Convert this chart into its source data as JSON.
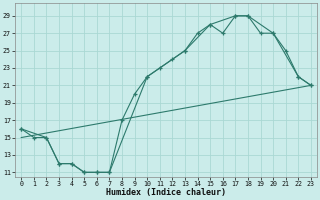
{
  "xlabel": "Humidex (Indice chaleur)",
  "background_color": "#cbecea",
  "grid_color": "#aad8d4",
  "line_color": "#2d7a6c",
  "xlim": [
    -0.5,
    23.5
  ],
  "ylim": [
    10.5,
    30.5
  ],
  "xticks": [
    0,
    1,
    2,
    3,
    4,
    5,
    6,
    7,
    8,
    9,
    10,
    11,
    12,
    13,
    14,
    15,
    16,
    17,
    18,
    19,
    20,
    21,
    22,
    23
  ],
  "yticks": [
    11,
    13,
    15,
    17,
    19,
    21,
    23,
    25,
    27,
    29
  ],
  "line1_x": [
    0,
    1,
    2,
    3,
    4,
    5,
    6,
    7,
    8,
    9,
    10,
    11,
    12,
    13,
    14,
    15,
    16,
    17,
    18,
    19,
    20,
    21,
    22,
    23
  ],
  "line1_y": [
    16,
    15,
    15,
    12,
    12,
    11,
    11,
    11,
    17,
    20,
    22,
    23,
    24,
    25,
    27,
    28,
    27,
    29,
    29,
    27,
    27,
    25,
    22,
    21
  ],
  "line3_x": [
    0,
    2,
    3,
    4,
    5,
    6,
    7,
    10,
    13,
    15,
    17,
    18,
    20,
    22,
    23
  ],
  "line3_y": [
    16,
    15,
    12,
    12,
    11,
    11,
    11,
    22,
    25,
    28,
    29,
    29,
    27,
    22,
    21
  ],
  "line4_x": [
    0,
    23
  ],
  "line4_y": [
    15,
    21
  ]
}
